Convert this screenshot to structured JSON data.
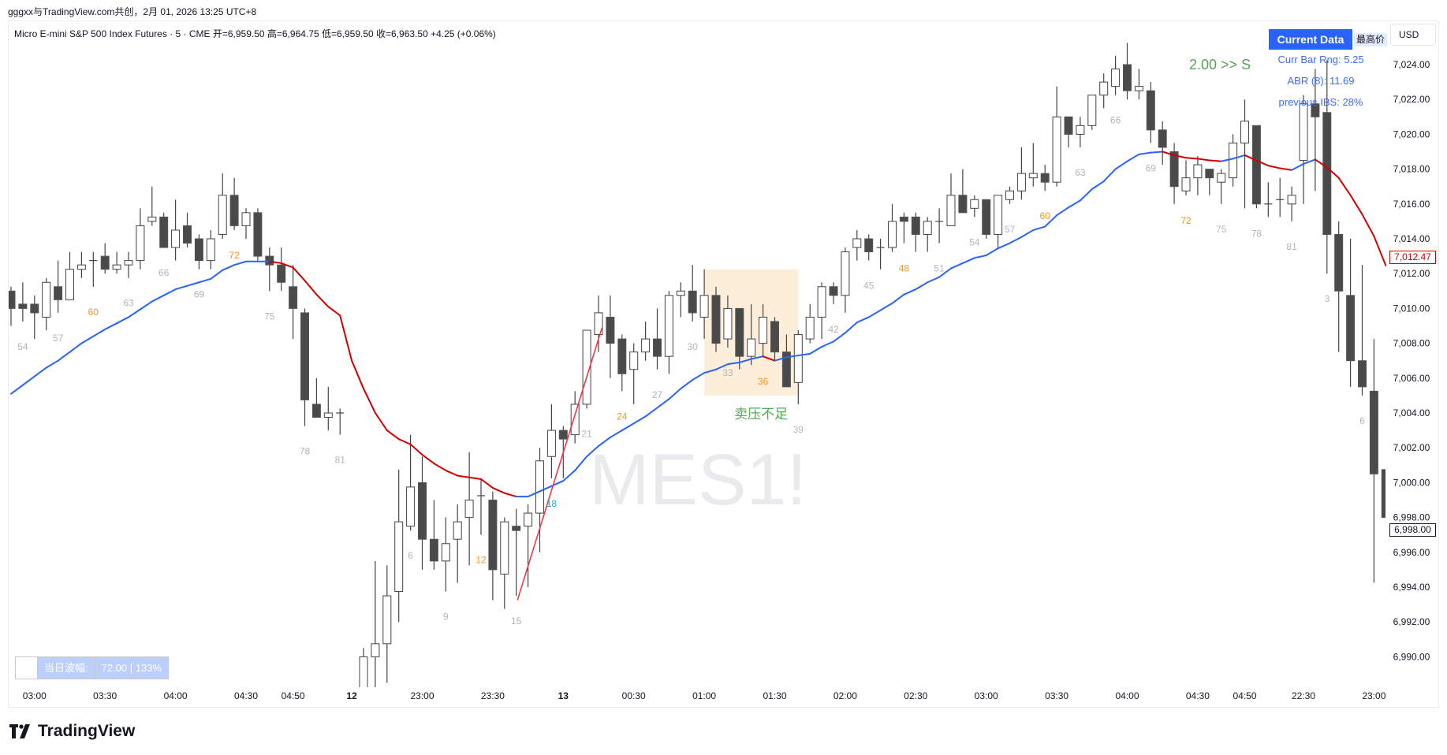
{
  "attribution": "gggxx与TradingView.com共创，2月 01, 2026 13:25 UTC+8",
  "legend": "Micro E-mini S&P 500 Index Futures · 5 · CME  开=6,959.50  高=6,964.75  低=6,959.50  收=6,963.50  +4.25 (+0.06%)",
  "watermark": "MES1!",
  "panel": {
    "header": "Current Data",
    "high_tag": "最高价",
    "currency": "USD",
    "curr_bar_rng": "Curr Bar Rng: 5.25",
    "abr": "ABR (8): 11.69",
    "prev_ibs": "previous IBS: 28%",
    "signal": "2.00 >> S"
  },
  "daily_range": {
    "label": "当日波幅:",
    "value": "72.00 | 133%"
  },
  "last_ma_price": "7,012.47",
  "last_price": "6,998.00",
  "annotation": "卖压不足",
  "brand": "TradingView",
  "colors": {
    "up_ma": "#2962ff",
    "down_ma": "#d10000",
    "trendline": "#f23645",
    "label_gray": "#b2b5be",
    "label_orange": "#f7941d",
    "label_cyan": "#26a9c6",
    "annotation": "#4caf50",
    "highlight": "#fdebd3",
    "candle_dark": "#4a4a4a"
  },
  "chart_data": {
    "type": "candlestick",
    "ylim": [
      6989,
      7026
    ],
    "y_ticks": [
      "7,024.00",
      "7,022.00",
      "7,020.00",
      "7,018.00",
      "7,016.00",
      "7,014.00",
      "7,012.00",
      "7,010.00",
      "7,008.00",
      "7,006.00",
      "7,004.00",
      "7,002.00",
      "7,000.00",
      "6,998.00",
      "6,996.00",
      "6,994.00",
      "6,992.00",
      "6,990.00"
    ],
    "x_labels": [
      {
        "bar": 2,
        "text": "03:00"
      },
      {
        "bar": 8,
        "text": "03:30"
      },
      {
        "bar": 14,
        "text": "04:00"
      },
      {
        "bar": 20,
        "text": "04:30"
      },
      {
        "bar": 24,
        "text": "04:50"
      },
      {
        "bar": 29,
        "text": "12",
        "bold": true
      },
      {
        "bar": 35,
        "text": "23:00"
      },
      {
        "bar": 41,
        "text": "23:30"
      },
      {
        "bar": 47,
        "text": "13",
        "bold": true
      },
      {
        "bar": 53,
        "text": "00:30"
      },
      {
        "bar": 59,
        "text": "01:00"
      },
      {
        "bar": 65,
        "text": "01:30"
      },
      {
        "bar": 71,
        "text": "02:00"
      },
      {
        "bar": 77,
        "text": "02:30"
      },
      {
        "bar": 83,
        "text": "03:00"
      },
      {
        "bar": 89,
        "text": "03:30"
      },
      {
        "bar": 95,
        "text": "04:00"
      },
      {
        "bar": 101,
        "text": "04:30"
      },
      {
        "bar": 105,
        "text": "04:50"
      },
      {
        "bar": 110,
        "text": "22:30"
      },
      {
        "bar": 116,
        "text": "23:00"
      }
    ],
    "ohlc": [
      [
        7011,
        7011.25,
        7009,
        7010
      ],
      [
        7010.25,
        7011.5,
        7009.25,
        7010
      ],
      [
        7010.25,
        7010.75,
        7008.25,
        7009.75
      ],
      [
        7009.5,
        7011.75,
        7008.75,
        7011.5
      ],
      [
        7011.25,
        7012.75,
        7009.75,
        7010.5
      ],
      [
        7010.5,
        7013.25,
        7010.5,
        7012.25
      ],
      [
        7012.25,
        7013.25,
        7011.75,
        7012.5
      ],
      [
        7012.75,
        7013.25,
        7011.25,
        7012.75
      ],
      [
        7013,
        7013.75,
        7012,
        7012.25
      ],
      [
        7012.25,
        7013.25,
        7012,
        7012.5
      ],
      [
        7012.5,
        7013.25,
        7011.75,
        7012.75
      ],
      [
        7012.75,
        7015.75,
        7012.25,
        7014.75
      ],
      [
        7015,
        7017,
        7014.75,
        7015.25
      ],
      [
        7015.25,
        7015.5,
        7013.5,
        7013.5
      ],
      [
        7013.5,
        7016.25,
        7012.75,
        7014.5
      ],
      [
        7014.75,
        7015.5,
        7013.5,
        7013.75
      ],
      [
        7014,
        7014.25,
        7012.25,
        7012.75
      ],
      [
        7012.75,
        7014.5,
        7012.25,
        7014
      ],
      [
        7014.25,
        7017.75,
        7014,
        7016.5
      ],
      [
        7016.5,
        7017.5,
        7014.5,
        7014.75
      ],
      [
        7014.75,
        7015.75,
        7014,
        7015.5
      ],
      [
        7015.5,
        7015.75,
        7012.75,
        7013
      ],
      [
        7013,
        7013.5,
        7011,
        7012.5
      ],
      [
        7012.5,
        7013.5,
        7011,
        7011.5
      ],
      [
        7011.25,
        7012.5,
        7008.25,
        7010
      ],
      [
        7009.75,
        7010,
        7003.25,
        7004.75
      ],
      [
        7004.5,
        7006,
        7003.75,
        7003.75
      ],
      [
        7003.75,
        7005.5,
        7003,
        7004
      ],
      [
        7004,
        7004.25,
        7002.75,
        7004
      ],
      null,
      [
        6988,
        6990.5,
        6987,
        6990
      ],
      [
        6990,
        6995.5,
        6987,
        6990.75
      ],
      [
        6990.75,
        6995.25,
        6988.5,
        6993.5
      ],
      [
        6993.75,
        7000.75,
        6992,
        6997.75
      ],
      [
        6997.5,
        7002.75,
        6997.25,
        6999.75
      ],
      [
        7000,
        7001.5,
        6995,
        6996.75
      ],
      [
        6996.75,
        6999,
        6995,
        6995.5
      ],
      [
        6995.5,
        6998,
        6993.75,
        6996.5
      ],
      [
        6996.75,
        6998.75,
        6994.25,
        6997.75
      ],
      [
        6998,
        7001.75,
        6995.25,
        6999
      ],
      [
        6999.25,
        7000.25,
        6997,
        6999.25
      ],
      [
        6999,
        6999.5,
        6993.25,
        6995
      ],
      [
        6994.75,
        6998,
        6992.75,
        6997.75
      ],
      [
        6997.5,
        6998.5,
        6993.5,
        6997.25
      ],
      [
        6997.5,
        6998.75,
        6994,
        6998.25
      ],
      [
        6998.25,
        7002,
        6996,
        7001.25
      ],
      [
        7001.5,
        7004.5,
        7000.25,
        7003
      ],
      [
        7003,
        7003.25,
        7000.25,
        7002.5
      ],
      [
        7002.75,
        7005.25,
        7002.25,
        7004.5
      ],
      [
        7004.5,
        7008.75,
        7004.25,
        7008.75
      ],
      [
        7008.5,
        7010.75,
        7007.5,
        7009.75
      ],
      [
        7009.5,
        7010.75,
        7006,
        7008
      ],
      [
        7008.25,
        7008.5,
        7005.25,
        7006.25
      ],
      [
        7006.5,
        7008,
        7004.5,
        7007.5
      ],
      [
        7007.5,
        7009.25,
        7007,
        7008.25
      ],
      [
        7008.25,
        7010,
        7006.5,
        7007.25
      ],
      [
        7007.25,
        7011,
        7006.25,
        7010.75
      ],
      [
        7010.75,
        7011.5,
        7009.5,
        7011
      ],
      [
        7011,
        7012.5,
        7009.25,
        7009.75
      ],
      [
        7009.5,
        7012.25,
        7008.25,
        7010.75
      ],
      [
        7010.75,
        7011.25,
        7007.5,
        7008
      ],
      [
        7008.25,
        7010.75,
        7007.75,
        7010
      ],
      [
        7010,
        7010,
        7006.5,
        7007.25
      ],
      [
        7007.25,
        7010.25,
        7006.75,
        7008.25
      ],
      [
        7008,
        7010.25,
        7007.25,
        7009.5
      ],
      [
        7009.25,
        7009.5,
        7007,
        7007.5
      ],
      [
        7007.5,
        7008.5,
        7005.5,
        7005.5
      ],
      [
        7005.75,
        7008.75,
        7004.5,
        7008.5
      ],
      [
        7008.25,
        7010.25,
        7008,
        7009.5
      ],
      [
        7009.5,
        7011.5,
        7008.25,
        7011.25
      ],
      [
        7011.25,
        7011.5,
        7010.25,
        7010.75
      ],
      [
        7010.75,
        7013.5,
        7009.75,
        7013.25
      ],
      [
        7013.5,
        7014.5,
        7012.75,
        7014
      ],
      [
        7014,
        7014.25,
        7012.75,
        7013.25
      ],
      [
        7013.5,
        7014,
        7012.25,
        7013.5
      ],
      [
        7013.5,
        7016,
        7013.25,
        7015
      ],
      [
        7015.25,
        7015.5,
        7013.75,
        7015
      ],
      [
        7015.25,
        7015.5,
        7013.25,
        7014.25
      ],
      [
        7014.25,
        7015.25,
        7013.25,
        7015
      ],
      [
        7015,
        7015.75,
        7013.75,
        7015
      ],
      [
        7014.75,
        7017.75,
        7014.75,
        7016.5
      ],
      [
        7016.5,
        7018,
        7015.5,
        7015.5
      ],
      [
        7015.75,
        7016.5,
        7015.25,
        7016.25
      ],
      [
        7016.25,
        7016.25,
        7014,
        7014.25
      ],
      [
        7014.25,
        7016.5,
        7013.5,
        7016.5
      ],
      [
        7016.25,
        7017,
        7016,
        7016.75
      ],
      [
        7016.75,
        7019.25,
        7016.25,
        7017.75
      ],
      [
        7017.5,
        7019.5,
        7017,
        7017.75
      ],
      [
        7017.75,
        7018.25,
        7016.75,
        7017.25
      ],
      [
        7017.25,
        7022.75,
        7017,
        7021
      ],
      [
        7021,
        7021,
        7019.25,
        7020
      ],
      [
        7020,
        7021,
        7019.25,
        7020.5
      ],
      [
        7020.5,
        7022.25,
        7020.25,
        7022.25
      ],
      [
        7022.25,
        7023.5,
        7021.5,
        7023
      ],
      [
        7022.75,
        7024.5,
        7022.25,
        7023.75
      ],
      [
        7024,
        7025.25,
        7022,
        7022.5
      ],
      [
        7022.5,
        7023.75,
        7022,
        7022.75
      ],
      [
        7022.5,
        7023,
        7019.5,
        7020.25
      ],
      [
        7020.25,
        7020.75,
        7018.25,
        7019.25
      ],
      [
        7019,
        7019.5,
        7016,
        7017
      ],
      [
        7016.75,
        7018.5,
        7016.5,
        7017.5
      ],
      [
        7017.5,
        7018.75,
        7016.5,
        7018.25
      ],
      [
        7018,
        7018,
        7016.5,
        7017.5
      ],
      [
        7017.25,
        7018,
        7016,
        7017.75
      ],
      [
        7017.5,
        7020,
        7017,
        7019.5
      ],
      [
        7019.5,
        7022,
        7015.75,
        7020.75
      ],
      [
        7020.5,
        7020.5,
        7015.75,
        7016
      ],
      [
        7016,
        7017.25,
        7015.25,
        7016
      ],
      [
        7016.25,
        7017.5,
        7015.25,
        7016.25
      ],
      [
        7016,
        7017,
        7015,
        7016.5
      ],
      [
        7018.5,
        7022.25,
        7016,
        7021.75
      ],
      [
        7021.75,
        7023.75,
        7016.75,
        7021
      ],
      [
        7021.25,
        7024.25,
        7012,
        7014.25
      ],
      [
        7014.25,
        7015,
        7007.5,
        7011
      ],
      [
        7010.75,
        7014,
        7005.5,
        7007
      ],
      [
        7007,
        7012.5,
        7005,
        7005.5
      ],
      [
        7005.25,
        7008.25,
        6994.25,
        7000.5
      ],
      [
        7000.75,
        7000.75,
        6998,
        6998
      ]
    ],
    "ma": [
      7005.1,
      7005.6,
      7006.1,
      7006.6,
      7007.0,
      7007.5,
      7008.0,
      7008.4,
      7008.8,
      7009.15,
      7009.5,
      7009.95,
      7010.4,
      7010.75,
      7011.1,
      7011.3,
      7011.5,
      7011.7,
      7012.2,
      7012.5,
      7012.7,
      7012.7,
      7012.7,
      7012.6,
      7012.35,
      7011.6,
      7010.8,
      7010.1,
      7009.6,
      7007.0,
      7005.4,
      7004.0,
      7003.0,
      7002.5,
      7002.2,
      7001.6,
      7001.1,
      7000.7,
      7000.4,
      7000.3,
      7000.2,
      6999.7,
      6999.4,
      6999.2,
      6999.2,
      6999.5,
      6999.8,
      7000.1,
      7000.7,
      7001.5,
      7002.1,
      7002.6,
      7003.0,
      7003.4,
      7003.8,
      7004.3,
      7004.8,
      7005.4,
      7005.9,
      7006.3,
      7006.5,
      7006.8,
      7006.9,
      7007.1,
      7007.25,
      7007.0,
      7007.2,
      7007.3,
      7007.4,
      7007.8,
      7008.1,
      7008.6,
      7009.2,
      7009.5,
      7009.9,
      7010.3,
      7010.8,
      7011.1,
      7011.5,
      7011.8,
      7012.3,
      7012.6,
      7012.9,
      7013.05,
      7013.45,
      7013.75,
      7014.1,
      7014.5,
      7014.7,
      7015.35,
      7015.8,
      7016.2,
      7016.85,
      7017.3,
      7018.0,
      7018.45,
      7018.85,
      7018.95,
      7019.0,
      7018.8,
      7018.65,
      7018.6,
      7018.5,
      7018.45,
      7018.6,
      7018.8,
      7018.5,
      7018.2,
      7018.05,
      7017.95,
      7018.3,
      7018.55,
      7018.1,
      7017.5,
      7016.5,
      7015.4,
      7014.15,
      7012.47
    ],
    "trendline": [
      [
        43.1,
        6993.25
      ],
      [
        50.3,
        7008.9
      ]
    ],
    "highlight": {
      "from_bar": 59,
      "to_bar": 67,
      "top": 7012.25,
      "bottom": 7005
    },
    "bar_labels": [
      [
        1,
        "54",
        "gray"
      ],
      [
        4,
        "57",
        "gray"
      ],
      [
        7,
        "60",
        "orange"
      ],
      [
        10,
        "63",
        "gray"
      ],
      [
        13,
        "66",
        "gray"
      ],
      [
        16,
        "69",
        "gray"
      ],
      [
        19,
        "72",
        "orange"
      ],
      [
        22,
        "75",
        "gray"
      ],
      [
        25,
        "78",
        "gray"
      ],
      [
        28,
        "81",
        "gray"
      ],
      [
        34,
        "6",
        "gray"
      ],
      [
        37,
        "9",
        "gray"
      ],
      [
        40,
        "12",
        "orange"
      ],
      [
        43,
        "15",
        "gray"
      ],
      [
        46,
        "18",
        "cyan"
      ],
      [
        49,
        "21",
        "gray"
      ],
      [
        52,
        "24",
        "orange"
      ],
      [
        55,
        "27",
        "gray"
      ],
      [
        58,
        "30",
        "gray"
      ],
      [
        61,
        "33",
        "gray"
      ],
      [
        64,
        "36",
        "orange"
      ],
      [
        67,
        "39",
        "gray"
      ],
      [
        70,
        "42",
        "gray"
      ],
      [
        73,
        "45",
        "gray"
      ],
      [
        76,
        "48",
        "orange"
      ],
      [
        79,
        "51",
        "gray"
      ],
      [
        82,
        "54",
        "gray"
      ],
      [
        85,
        "57",
        "gray"
      ],
      [
        88,
        "60",
        "orange"
      ],
      [
        91,
        "63",
        "gray"
      ],
      [
        94,
        "66",
        "gray"
      ],
      [
        97,
        "69",
        "gray"
      ],
      [
        100,
        "72",
        "orange"
      ],
      [
        103,
        "75",
        "gray"
      ],
      [
        106,
        "78",
        "gray"
      ],
      [
        109,
        "81",
        "gray"
      ],
      [
        112,
        "3",
        "gray"
      ],
      [
        115,
        "6",
        "gray"
      ]
    ]
  }
}
